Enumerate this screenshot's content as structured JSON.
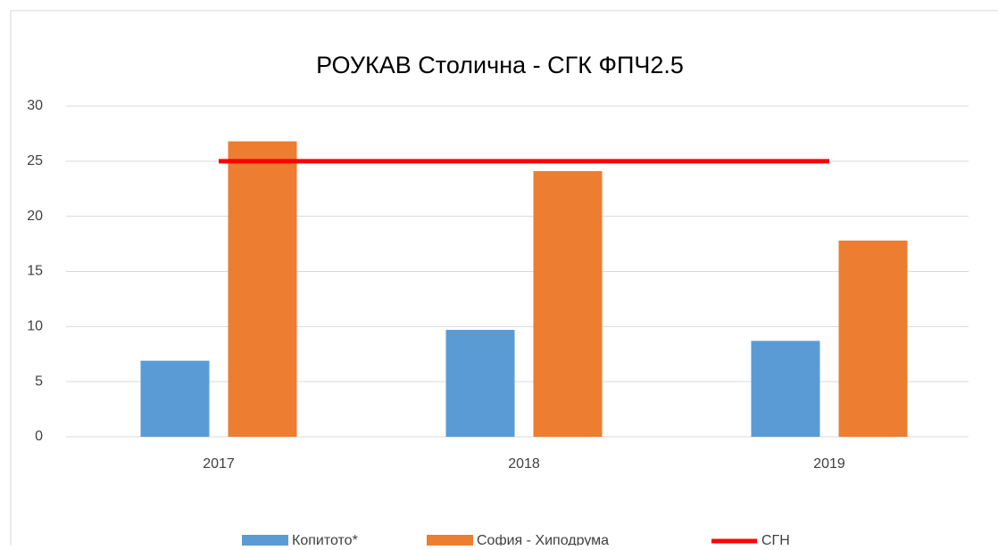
{
  "chart_data": {
    "type": "bar",
    "title": "РОУКАВ Столична - СГК ФПЧ2.5",
    "categories": [
      "2017",
      "2018",
      "2019"
    ],
    "series": [
      {
        "name": "Копитото*",
        "color": "#5b9bd5",
        "values": [
          6.9,
          9.7,
          8.7
        ]
      },
      {
        "name": "София - Хиподрума",
        "color": "#ed7d31",
        "values": [
          26.8,
          24.1,
          17.8
        ]
      },
      {
        "name": "СГН",
        "color": "#ff0000",
        "type": "line",
        "values": [
          25,
          25,
          25
        ]
      }
    ],
    "ylim": [
      0,
      30
    ],
    "yticks": [
      0,
      5,
      10,
      15,
      20,
      25,
      30
    ],
    "grid": true,
    "legend": "bottom"
  }
}
